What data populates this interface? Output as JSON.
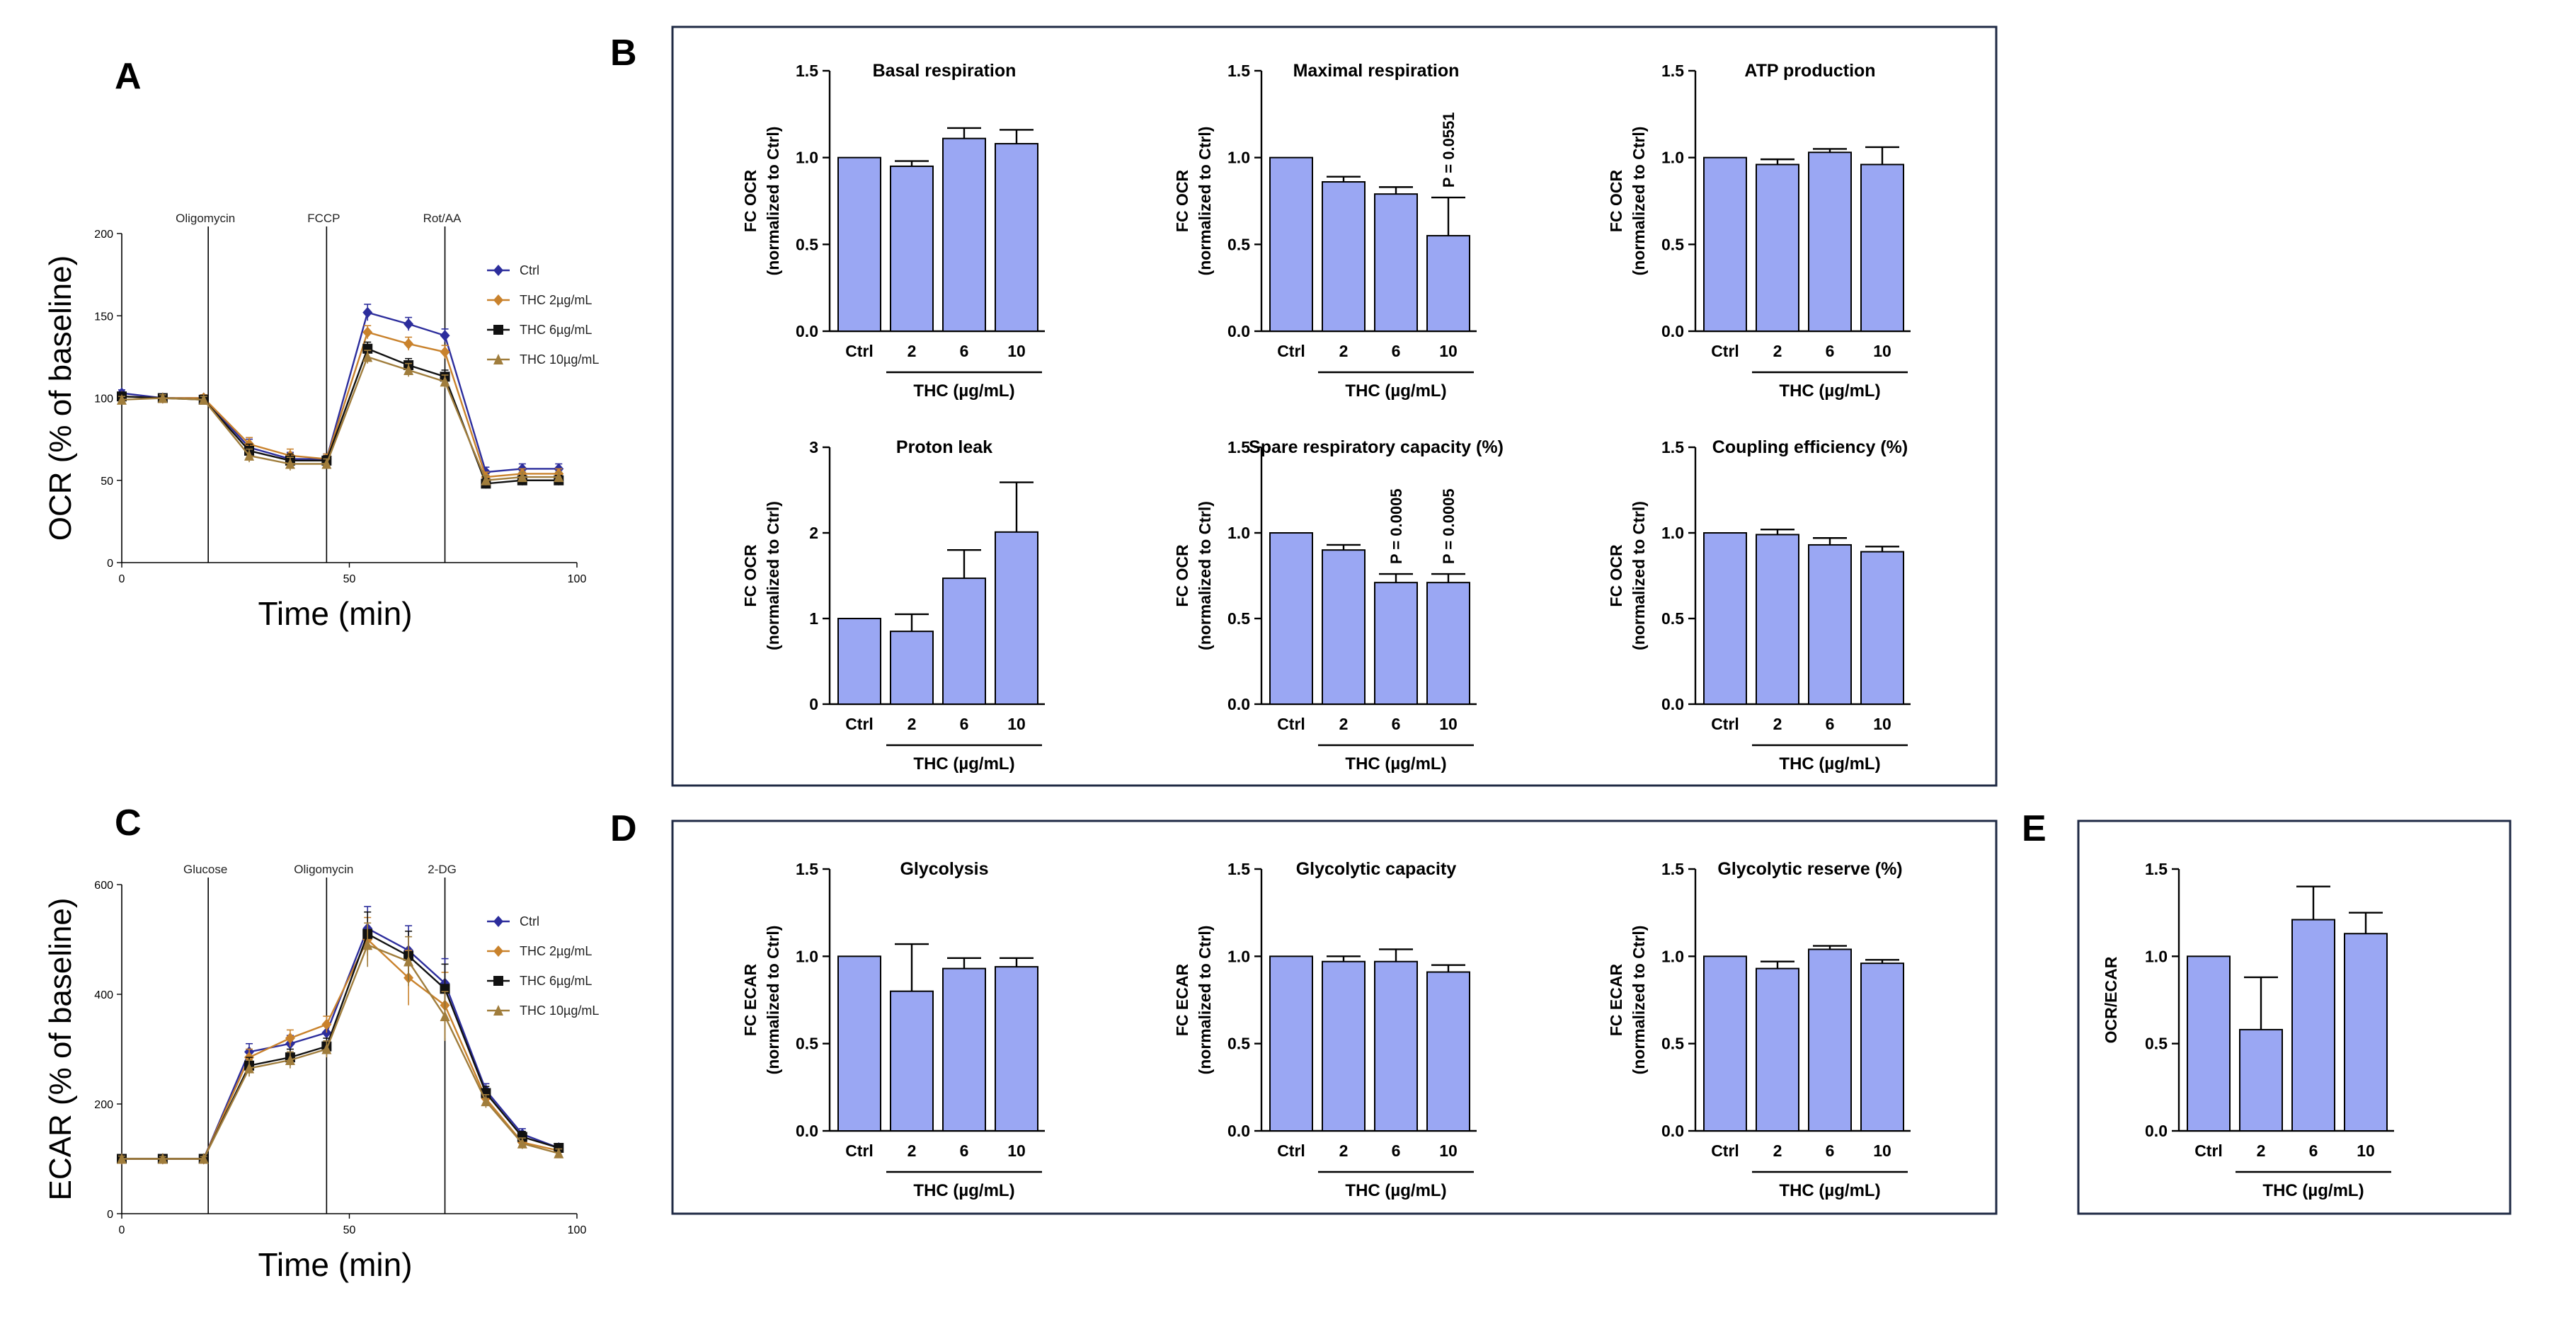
{
  "panel_labels": {
    "A": "A",
    "B": "B",
    "C": "C",
    "D": "D",
    "E": "E"
  },
  "colors": {
    "bar": "#9aa7f3",
    "ctrl": "#2c2d9c",
    "thc2": "#c9822c",
    "thc6": "#111111",
    "thc10": "#a07d3c"
  },
  "chart_data": [
    {
      "id": "A",
      "type": "line",
      "xlabel": "Time (min)",
      "ylabel": "OCR (% of baseline)",
      "xlim": [
        0,
        100
      ],
      "ylim": [
        0,
        200
      ],
      "xticks": [
        0,
        50,
        100
      ],
      "yticks": [
        0,
        50,
        100,
        150,
        200
      ],
      "injections": [
        {
          "label": "Oligomycin",
          "x": 19
        },
        {
          "label": "FCCP",
          "x": 45
        },
        {
          "label": "Rot/AA",
          "x": 71
        }
      ],
      "x": [
        0,
        9,
        18,
        28,
        37,
        45,
        54,
        63,
        71,
        80,
        88,
        96
      ],
      "series": [
        {
          "name": "Ctrl",
          "color": "#2c2d9c",
          "marker": "diamond",
          "values": [
            103,
            100,
            100,
            70,
            63,
            63,
            152,
            145,
            138,
            55,
            57,
            57
          ],
          "err": [
            2,
            2,
            2,
            5,
            4,
            3,
            5,
            4,
            4,
            3,
            3,
            3
          ]
        },
        {
          "name": "THC 2µg/mL",
          "color": "#c9822c",
          "marker": "diamond",
          "values": [
            101,
            100,
            100,
            72,
            65,
            63,
            140,
            133,
            128,
            52,
            54,
            54
          ],
          "err": [
            2,
            2,
            2,
            4,
            4,
            3,
            4,
            4,
            4,
            3,
            3,
            3
          ]
        },
        {
          "name": "THC 6µg/mL",
          "color": "#111111",
          "marker": "square",
          "values": [
            101,
            100,
            99,
            68,
            62,
            62,
            130,
            120,
            113,
            48,
            50,
            50
          ],
          "err": [
            2,
            2,
            2,
            4,
            4,
            3,
            4,
            4,
            4,
            3,
            3,
            3
          ]
        },
        {
          "name": "THC 10µg/mL",
          "color": "#a07d3c",
          "marker": "triangle",
          "values": [
            99,
            100,
            99,
            65,
            60,
            60,
            125,
            117,
            110,
            50,
            52,
            52
          ],
          "err": [
            2,
            2,
            2,
            4,
            4,
            3,
            4,
            4,
            4,
            3,
            3,
            3
          ]
        }
      ]
    },
    {
      "id": "C",
      "type": "line",
      "xlabel": "Time (min)",
      "ylabel": "ECAR (% of baseline)",
      "xlim": [
        0,
        100
      ],
      "ylim": [
        0,
        600
      ],
      "xticks": [
        0,
        50,
        100
      ],
      "yticks": [
        0,
        200,
        400,
        600
      ],
      "injections": [
        {
          "label": "Glucose",
          "x": 19
        },
        {
          "label": "Oligomycin",
          "x": 45
        },
        {
          "label": "2-DG",
          "x": 71
        }
      ],
      "x": [
        0,
        9,
        18,
        28,
        37,
        45,
        54,
        63,
        71,
        80,
        88,
        96
      ],
      "series": [
        {
          "name": "Ctrl",
          "color": "#2c2d9c",
          "marker": "diamond",
          "values": [
            100,
            100,
            100,
            295,
            310,
            330,
            520,
            480,
            420,
            225,
            145,
            120
          ],
          "err": [
            5,
            4,
            4,
            15,
            15,
            15,
            40,
            45,
            45,
            12,
            10,
            8
          ]
        },
        {
          "name": "THC 2µg/mL",
          "color": "#c9822c",
          "marker": "diamond",
          "values": [
            100,
            100,
            100,
            285,
            320,
            345,
            500,
            430,
            380,
            210,
            130,
            115
          ],
          "err": [
            5,
            4,
            4,
            15,
            15,
            15,
            40,
            50,
            60,
            12,
            10,
            8
          ]
        },
        {
          "name": "THC 6µg/mL",
          "color": "#111111",
          "marker": "square",
          "values": [
            100,
            100,
            100,
            270,
            285,
            305,
            510,
            470,
            410,
            220,
            140,
            120
          ],
          "err": [
            5,
            4,
            4,
            15,
            15,
            15,
            40,
            45,
            45,
            12,
            10,
            8
          ]
        },
        {
          "name": "THC 10µg/mL",
          "color": "#a07d3c",
          "marker": "triangle",
          "values": [
            100,
            100,
            100,
            265,
            280,
            300,
            490,
            460,
            360,
            205,
            128,
            110
          ],
          "err": [
            5,
            4,
            4,
            15,
            15,
            15,
            40,
            45,
            45,
            12,
            10,
            8
          ]
        }
      ]
    },
    {
      "id": "B1",
      "type": "bar",
      "title": "Basal respiration",
      "ylabel": [
        "FC OCR",
        "(normalized to Ctrl)"
      ],
      "categories": [
        "Ctrl",
        "2",
        "6",
        "10"
      ],
      "values": [
        1.0,
        0.95,
        1.11,
        1.08
      ],
      "errors": [
        0,
        0.03,
        0.06,
        0.08
      ],
      "ylim": [
        0,
        1.5
      ],
      "yticks": [
        "0.0",
        "0.5",
        "1.0",
        "1.5"
      ],
      "group_label": "THC (µg/mL)",
      "annotations": []
    },
    {
      "id": "B2",
      "type": "bar",
      "title": "Maximal  respiration",
      "ylabel": [
        "FC OCR",
        "(normalized to Ctrl)"
      ],
      "categories": [
        "Ctrl",
        "2",
        "6",
        "10"
      ],
      "values": [
        1.0,
        0.86,
        0.79,
        0.55
      ],
      "errors": [
        0,
        0.03,
        0.04,
        0.22
      ],
      "ylim": [
        0,
        1.5
      ],
      "yticks": [
        "0.0",
        "0.5",
        "1.0",
        "1.5"
      ],
      "group_label": "THC (µg/mL)",
      "annotations": [
        {
          "bar": 3,
          "text": "P = 0.0551"
        }
      ]
    },
    {
      "id": "B3",
      "type": "bar",
      "title": "ATP  production",
      "ylabel": [
        "FC OCR",
        "(normalized to Ctrl)"
      ],
      "categories": [
        "Ctrl",
        "2",
        "6",
        "10"
      ],
      "values": [
        1.0,
        0.96,
        1.03,
        0.96
      ],
      "errors": [
        0,
        0.03,
        0.02,
        0.1
      ],
      "ylim": [
        0,
        1.5
      ],
      "yticks": [
        "0.0",
        "0.5",
        "1.0",
        "1.5"
      ],
      "group_label": "THC (µg/mL)",
      "annotations": []
    },
    {
      "id": "B4",
      "type": "bar",
      "title": "Proton leak",
      "ylabel": [
        "FC OCR",
        "(normalized to Ctrl)"
      ],
      "categories": [
        "Ctrl",
        "2",
        "6",
        "10"
      ],
      "values": [
        1.0,
        0.85,
        1.47,
        2.01
      ],
      "errors": [
        0,
        0.2,
        0.33,
        0.58
      ],
      "ylim": [
        0,
        3
      ],
      "yticks": [
        "0",
        "1",
        "2",
        "3"
      ],
      "group_label": "THC (µg/mL)",
      "annotations": []
    },
    {
      "id": "B5",
      "type": "bar",
      "title": "Spare respiratory capacity (%)",
      "ylabel": [
        "FC OCR",
        "(normalized to Ctrl)"
      ],
      "categories": [
        "Ctrl",
        "2",
        "6",
        "10"
      ],
      "values": [
        1.0,
        0.9,
        0.71,
        0.71
      ],
      "errors": [
        0,
        0.03,
        0.05,
        0.05
      ],
      "ylim": [
        0,
        1.5
      ],
      "yticks": [
        "0.0",
        "0.5",
        "1.0",
        "1.5"
      ],
      "group_label": "THC (µg/mL)",
      "annotations": [
        {
          "bar": 2,
          "text": "P = 0.0005"
        },
        {
          "bar": 3,
          "text": "P = 0.0005"
        }
      ]
    },
    {
      "id": "B6",
      "type": "bar",
      "title": "Coupling efficiency (%)",
      "ylabel": [
        "FC OCR",
        "(normalized to Ctrl)"
      ],
      "categories": [
        "Ctrl",
        "2",
        "6",
        "10"
      ],
      "values": [
        1.0,
        0.99,
        0.93,
        0.89
      ],
      "errors": [
        0,
        0.03,
        0.04,
        0.03
      ],
      "ylim": [
        0,
        1.5
      ],
      "yticks": [
        "0.0",
        "0.5",
        "1.0",
        "1.5"
      ],
      "group_label": "THC (µg/mL)",
      "annotations": []
    },
    {
      "id": "D1",
      "type": "bar",
      "title": "Glycolysis",
      "ylabel": [
        "FC ECAR",
        "(normalized to Ctrl)"
      ],
      "categories": [
        "Ctrl",
        "2",
        "6",
        "10"
      ],
      "values": [
        1.0,
        0.8,
        0.93,
        0.94
      ],
      "errors": [
        0,
        0.27,
        0.06,
        0.05
      ],
      "ylim": [
        0,
        1.5
      ],
      "yticks": [
        "0.0",
        "0.5",
        "1.0",
        "1.5"
      ],
      "group_label": "THC (µg/mL)",
      "annotations": []
    },
    {
      "id": "D2",
      "type": "bar",
      "title": "Glycolytic capacity",
      "ylabel": [
        "FC ECAR",
        "(normalized to Ctrl)"
      ],
      "categories": [
        "Ctrl",
        "2",
        "6",
        "10"
      ],
      "values": [
        1.0,
        0.97,
        0.97,
        0.91
      ],
      "errors": [
        0,
        0.03,
        0.07,
        0.04
      ],
      "ylim": [
        0,
        1.5
      ],
      "yticks": [
        "0.0",
        "0.5",
        "1.0",
        "1.5"
      ],
      "group_label": "THC (µg/mL)",
      "annotations": []
    },
    {
      "id": "D3",
      "type": "bar",
      "title": "Glycolytic reserve (%)",
      "ylabel": [
        "FC ECAR",
        "(normalized to Ctrl)"
      ],
      "categories": [
        "Ctrl",
        "2",
        "6",
        "10"
      ],
      "values": [
        1.0,
        0.93,
        1.04,
        0.96
      ],
      "errors": [
        0,
        0.04,
        0.02,
        0.02
      ],
      "ylim": [
        0,
        1.5
      ],
      "yticks": [
        "0.0",
        "0.5",
        "1.0",
        "1.5"
      ],
      "group_label": "THC (µg/mL)",
      "annotations": []
    },
    {
      "id": "E",
      "type": "bar",
      "title": "",
      "ylabel": [
        "OCR/ECAR"
      ],
      "categories": [
        "Ctrl",
        "2",
        "6",
        "10"
      ],
      "values": [
        1.0,
        0.58,
        1.21,
        1.13
      ],
      "errors": [
        0,
        0.3,
        0.19,
        0.12
      ],
      "ylim": [
        0,
        1.5
      ],
      "yticks": [
        "0.0",
        "0.5",
        "1.0",
        "1.5"
      ],
      "group_label": "THC (µg/mL)",
      "annotations": []
    }
  ]
}
